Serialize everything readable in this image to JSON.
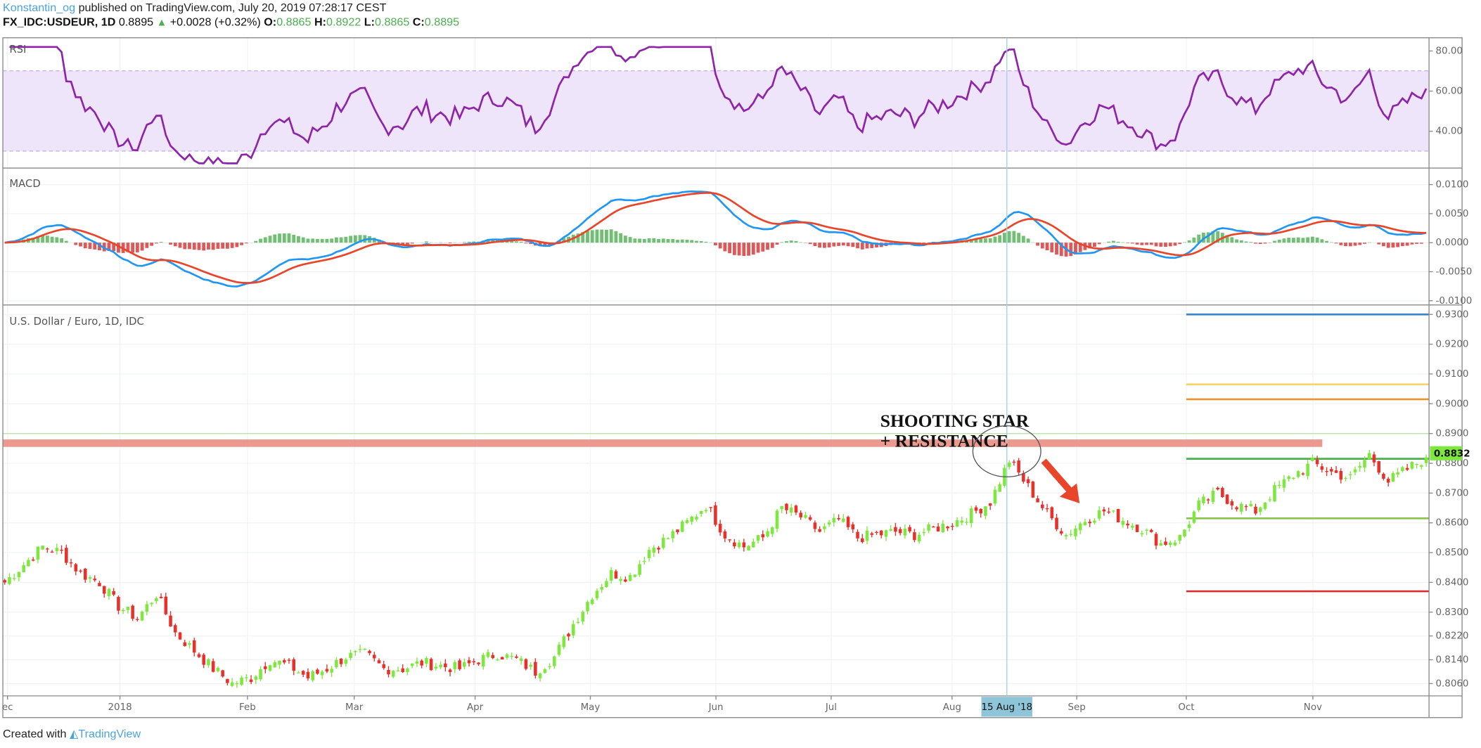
{
  "header": {
    "author": "Konstantin_og",
    "published": "published on TradingView.com, July 20, 2019 07:28:17 CEST",
    "symbol": "FX_IDC:USDEUR, 1D",
    "last": "0.8895",
    "change": "+0.0028 (+0.32%)",
    "o_label": "O:",
    "o": "0.8865",
    "h_label": "H:",
    "h": "0.8922",
    "l_label": "L:",
    "l": "0.8865",
    "c_label": "C:",
    "c": "0.8895"
  },
  "rsi_pane": {
    "title": "RSI",
    "ticks": [
      "80.00",
      "60.00",
      "40.00"
    ],
    "band": [
      30,
      70
    ]
  },
  "macd_pane": {
    "title": "MACD",
    "ticks": [
      "0.0100",
      "0.0050",
      "0.0000",
      "-0.0050",
      "-0.0100"
    ]
  },
  "price_pane": {
    "title": "U.S. Dollar / Euro, 1D, IDC",
    "ticks": [
      "0.9300",
      "0.9200",
      "0.9100",
      "0.9000",
      "0.8900",
      "0.8800",
      "0.8700",
      "0.8600",
      "0.8500",
      "0.8400",
      "0.8300",
      "0.8220",
      "0.8140",
      "0.8060"
    ],
    "last_price_label": "0.8832",
    "annotation_line1": "SHOOTING STAR",
    "annotation_line2": "+ RESISTANCE",
    "levels": [
      {
        "price": 0.93,
        "color": "#3d85c6"
      },
      {
        "price": 0.9065,
        "color": "#f6d36b"
      },
      {
        "price": 0.9015,
        "color": "#f0922b"
      },
      {
        "price": 0.8815,
        "color": "#4caf50"
      },
      {
        "price": 0.8615,
        "color": "#8bc34a"
      },
      {
        "price": 0.837,
        "color": "#d32f2f"
      }
    ],
    "resistance_zone": [
      0.8855,
      0.888
    ],
    "resistance_color": "#e8877a"
  },
  "time_axis": {
    "ticks": [
      "ec",
      "2018",
      "Feb",
      "Mar",
      "Apr",
      "May",
      "Jun",
      "Jul",
      "Aug",
      "Sep",
      "Oct",
      "Nov"
    ],
    "crosshair_label": "15 Aug '18"
  },
  "footer": {
    "created": "Created with",
    "brand": "TradingView"
  },
  "colors": {
    "up": "#7ee83f",
    "down": "#e8312a",
    "rsi": "#8e24aa",
    "macd": "#2196f3",
    "signal": "#e8452a"
  },
  "chart_data": {
    "type": "candlestick",
    "title": "U.S. Dollar / Euro, 1D, IDC",
    "ylim": [
      0.806,
      0.93
    ],
    "close": [
      0.84,
      0.846,
      0.852,
      0.85,
      0.843,
      0.84,
      0.832,
      0.828,
      0.836,
      0.823,
      0.817,
      0.811,
      0.806,
      0.808,
      0.814,
      0.812,
      0.808,
      0.811,
      0.815,
      0.816,
      0.811,
      0.811,
      0.813,
      0.812,
      0.811,
      0.814,
      0.816,
      0.814,
      0.81,
      0.815,
      0.826,
      0.836,
      0.843,
      0.842,
      0.851,
      0.855,
      0.86,
      0.866,
      0.856,
      0.852,
      0.855,
      0.865,
      0.862,
      0.857,
      0.861,
      0.855,
      0.856,
      0.857,
      0.856,
      0.858,
      0.86,
      0.863,
      0.867,
      0.881,
      0.872,
      0.863,
      0.856,
      0.861,
      0.864,
      0.861,
      0.858,
      0.853,
      0.855,
      0.866,
      0.87,
      0.866,
      0.864,
      0.871,
      0.876,
      0.88,
      0.877,
      0.875,
      0.883,
      0.874,
      0.878,
      0.882
    ]
  }
}
